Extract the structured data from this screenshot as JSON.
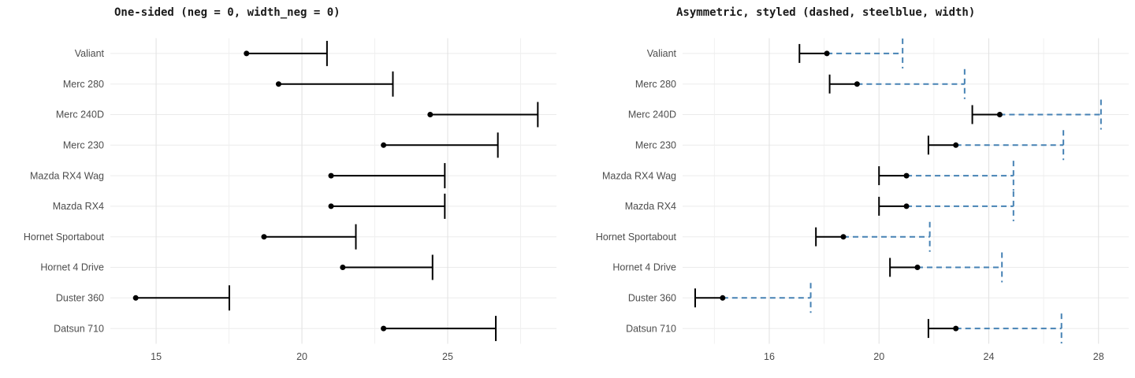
{
  "theme": {
    "background": "#ffffff",
    "axis_text_color": "#4d4d4d",
    "title_color": "#1a1a1a",
    "grid_major_color": "#e3e3e3",
    "grid_minor_color": "#efefef",
    "row_grid_color": "#ebebeb",
    "accent_steelblue": "#4682b4",
    "bar_black": "#000000"
  },
  "chart_data": [
    {
      "type": "errorbar",
      "orientation": "horizontal",
      "title": "One-sided (neg = 0, width_neg = 0)",
      "categories": [
        "Valiant",
        "Merc 280",
        "Merc 240D",
        "Merc 230",
        "Mazda RX4 Wag",
        "Mazda RX4",
        "Hornet Sportabout",
        "Hornet 4 Drive",
        "Duster 360",
        "Datsun 710"
      ],
      "x": [
        18.1,
        19.2,
        24.4,
        22.8,
        21.0,
        21.0,
        18.7,
        21.4,
        14.3,
        22.8
      ],
      "xmin": [
        18.1,
        19.2,
        24.4,
        22.8,
        21.0,
        21.0,
        18.7,
        21.4,
        14.3,
        22.8
      ],
      "xmax": [
        20.86,
        23.12,
        28.09,
        26.72,
        24.9,
        24.9,
        21.85,
        24.48,
        17.51,
        26.65
      ],
      "xlim": [
        13.43,
        28.73
      ],
      "x_major_ticks": [
        15,
        20,
        25
      ],
      "x_minor_ticks": [
        17.5,
        22.5,
        27.5
      ],
      "grid": true,
      "legend": "none",
      "style": {
        "neg_color": "#000000",
        "neg_linetype": "solid",
        "pos_color": "#000000",
        "pos_linetype": "solid",
        "point_color": "#000000"
      }
    },
    {
      "type": "errorbar",
      "orientation": "horizontal",
      "title": "Asymmetric, styled (dashed, steelblue, width)",
      "categories": [
        "Valiant",
        "Merc 280",
        "Merc 240D",
        "Merc 230",
        "Mazda RX4 Wag",
        "Mazda RX4",
        "Hornet Sportabout",
        "Hornet 4 Drive",
        "Duster 360",
        "Datsun 710"
      ],
      "x": [
        18.1,
        19.2,
        24.4,
        22.8,
        21.0,
        21.0,
        18.7,
        21.4,
        14.3,
        22.8
      ],
      "xmin": [
        17.1,
        18.2,
        23.4,
        21.8,
        20.0,
        20.0,
        17.7,
        20.4,
        13.3,
        21.8
      ],
      "xmax": [
        20.86,
        23.12,
        28.09,
        26.72,
        24.9,
        24.9,
        21.85,
        24.48,
        17.51,
        26.65
      ],
      "xlim": [
        12.84,
        29.1
      ],
      "x_major_ticks": [
        16,
        20,
        24,
        28
      ],
      "x_minor_ticks": [
        14,
        18,
        22,
        26
      ],
      "grid": true,
      "legend": "none",
      "style": {
        "neg_color": "#000000",
        "neg_linetype": "solid",
        "pos_color": "#4682b4",
        "pos_linetype": "dashed",
        "point_color": "#000000"
      }
    }
  ]
}
